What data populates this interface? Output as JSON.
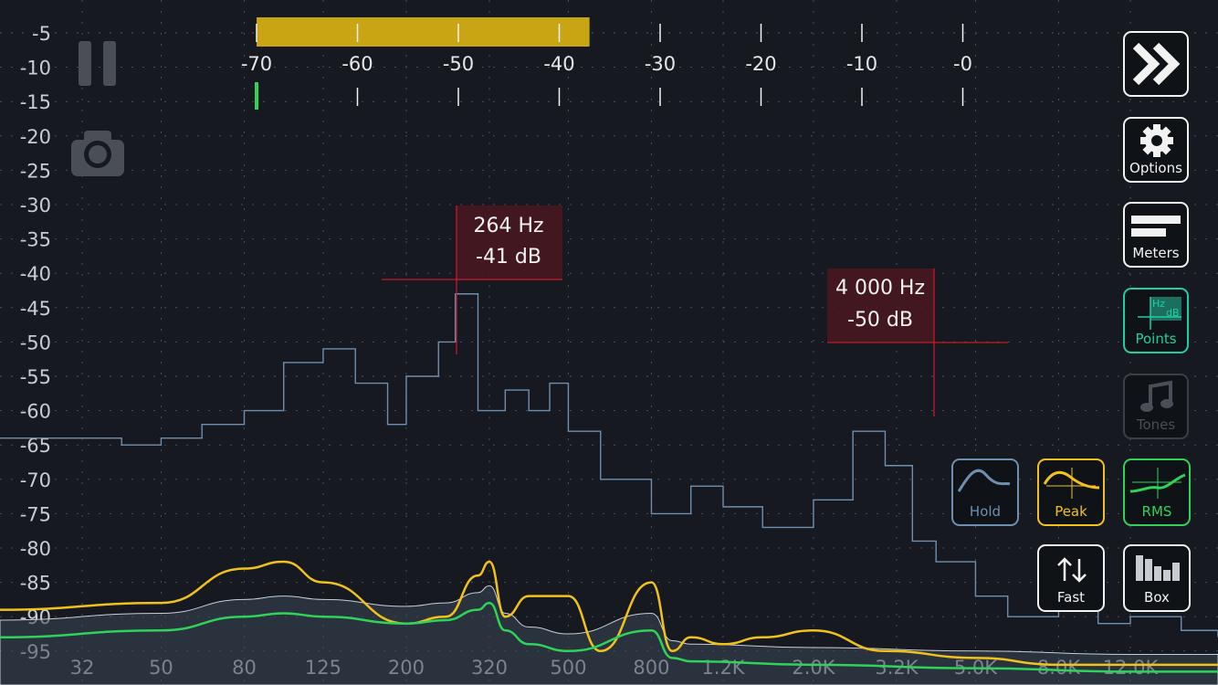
{
  "db_axis": {
    "labels": [
      "-5",
      "-10",
      "-15",
      "-20",
      "-25",
      "-30",
      "-35",
      "-40",
      "-45",
      "-50",
      "-55",
      "-60",
      "-65",
      "-70",
      "-75",
      "-80",
      "-85",
      "-90",
      "-95"
    ]
  },
  "freq_axis": {
    "labels": [
      "32",
      "50",
      "80",
      "125",
      "200",
      "320",
      "500",
      "800",
      "1.2K",
      "2.0K",
      "3.2K",
      "5.0K",
      "8.0K",
      "12.0K"
    ]
  },
  "level_meter": {
    "scale_labels": [
      "-70",
      "-60",
      "-50",
      "-40",
      "-30",
      "-20",
      "-10",
      "-0"
    ],
    "level_db": -37,
    "rms_marker_db": -70
  },
  "markers": [
    {
      "freq": "264 Hz",
      "level": "-41 dB"
    },
    {
      "freq": "4 000 Hz",
      "level": "-50 dB"
    }
  ],
  "buttons": {
    "forward": "",
    "options": "Options",
    "meters": "Meters",
    "points": "Points",
    "points_hz": "Hz",
    "points_db": "dB",
    "tones": "Tones",
    "hold": "Hold",
    "peak": "Peak",
    "rms": "RMS",
    "fast": "Fast",
    "box": "Box"
  },
  "colors": {
    "background": "#16191f",
    "axis_text": "#c9ccd2",
    "meter_fill": "#c9a514",
    "hold_line": "#6f8fb0",
    "peak_line": "#f2c21b",
    "rms_line": "#2fd35a",
    "points_accent": "#1fcfa0",
    "marker_line": "#c4182d",
    "marker_box": "#4a1820"
  },
  "chart_data": {
    "type": "line",
    "xlabel": "",
    "ylabel": "",
    "x_scale": "log",
    "x_ticks_hz": [
      32,
      50,
      80,
      125,
      200,
      320,
      500,
      800,
      1200,
      2000,
      3200,
      5000,
      8000,
      12000
    ],
    "ylim": [
      -95,
      -5
    ],
    "series": [
      {
        "name": "Hold",
        "x": [
          20,
          40,
          50,
          63,
          80,
          100,
          125,
          150,
          180,
          200,
          240,
          264,
          300,
          350,
          400,
          450,
          500,
          600,
          800,
          1000,
          1200,
          1500,
          2000,
          2500,
          3000,
          3500,
          4000,
          5000,
          6000,
          8000,
          10000,
          12000,
          16000,
          20000
        ],
        "y": [
          -64,
          -65,
          -64,
          -62,
          -60,
          -53,
          -51,
          -56,
          -62,
          -55,
          -50,
          -43,
          -60,
          -57,
          -60,
          -56,
          -63,
          -70,
          -75,
          -71,
          -74,
          -77,
          -73,
          -63,
          -68,
          -79,
          -82,
          -87,
          -90,
          -88,
          -91,
          -90,
          -92,
          -93
        ]
      },
      {
        "name": "Peak",
        "x": [
          20,
          50,
          80,
          100,
          125,
          200,
          250,
          300,
          320,
          350,
          400,
          500,
          600,
          800,
          900,
          1000,
          1200,
          1500,
          2000,
          3000,
          5000,
          8000,
          12000,
          20000
        ],
        "y": [
          -89,
          -88,
          -83,
          -82,
          -85,
          -91,
          -90,
          -84,
          -82,
          -90,
          -87,
          -87,
          -95,
          -85,
          -95,
          -93,
          -94,
          -93,
          -92,
          -95,
          -96,
          -97,
          -97,
          -97
        ]
      },
      {
        "name": "RMS",
        "x": [
          20,
          50,
          80,
          100,
          125,
          200,
          250,
          300,
          320,
          350,
          400,
          500,
          800,
          900,
          1000,
          2000,
          5000,
          12000,
          20000
        ],
        "y": [
          -93,
          -92,
          -90,
          -89.5,
          -90,
          -91,
          -90.5,
          -89,
          -88,
          -92,
          -94,
          -95,
          -92,
          -96,
          -96.5,
          -97,
          -97.5,
          -98,
          -98
        ]
      }
    ]
  }
}
